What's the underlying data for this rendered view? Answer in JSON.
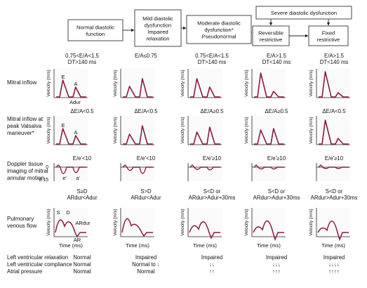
{
  "stage_boxes": [
    {
      "id": "normal",
      "lines": [
        "Normal diastolic",
        "function"
      ]
    },
    {
      "id": "mild",
      "lines": [
        "Mild diastolic",
        "dysfunction",
        "Impaired",
        "relaxation"
      ]
    },
    {
      "id": "moderate",
      "lines": [
        "Moderate diastolic",
        "dysfunction*",
        "Pseudonormal"
      ]
    },
    {
      "id": "severe",
      "lines": [
        "Severe diastolic dysfunction"
      ]
    },
    {
      "id": "reversible",
      "lines": [
        "Reversible",
        "restrictive"
      ]
    },
    {
      "id": "fixed",
      "lines": [
        "Fixed",
        "restrictive"
      ]
    }
  ],
  "row_labels": [
    {
      "id": "mitral",
      "lines": [
        "Mitral inflow"
      ]
    },
    {
      "id": "valsalva",
      "lines": [
        "Mitral inflow at",
        "peak Valsalva",
        "maneuver*"
      ]
    },
    {
      "id": "tissue",
      "lines": [
        "Doppler tissue",
        "imaging of mitral",
        "annular motion"
      ]
    },
    {
      "id": "pulmonary",
      "lines": [
        "Pulmonary",
        "venous flow"
      ]
    }
  ],
  "row1_criteria": [
    [
      "0.75<E/A<1.5",
      "DT>140 ms"
    ],
    [
      "E/A≤0.75"
    ],
    [
      "0.75<E/A<1.5",
      "DT>140 ms"
    ],
    [
      "E/A>1.5",
      "DT<140 ms"
    ],
    [
      "E/A>1.5",
      "DT<140 ms"
    ]
  ],
  "row2_criteria": [
    "ΔE/A<0.5",
    "ΔE/A<0.5",
    "ΔE/A≥0.5",
    "ΔE/A≥0.5",
    "ΔE/A<0.5"
  ],
  "row3_criteria": [
    "E/e'<10",
    "E/e'<10",
    "E/e'≥10",
    "E/e'≥10",
    "E/e'≥10"
  ],
  "row4_criteria": [
    [
      "S≥D",
      "ARdur<Adur"
    ],
    [
      "S>D",
      "ARdur<Adur"
    ],
    [
      "S<D or",
      "ARdur>Adur+30ms"
    ],
    [
      "S<D or",
      "ARdur>Adur+30ms"
    ],
    [
      "S<D or",
      "ARdur>Adur+30ms"
    ]
  ],
  "axis": {
    "velocity": "Velocity (m/s)",
    "time": "Time (ms)",
    "tissue_top": "0",
    "tissue_bottom": "0.15"
  },
  "waveform_labels": {
    "E": "E",
    "A": "A",
    "Adur": "Adur",
    "e_prime": "e'",
    "a_prime": "a'",
    "S": "S",
    "D": "D",
    "ARdur": "ARdur",
    "AR": "AR"
  },
  "bottom_table": {
    "labels": [
      "Left ventricular relaxation",
      "Left ventricular compliance",
      "Atrial pressure"
    ],
    "columns": [
      [
        "Normal",
        "Normal",
        "Normal"
      ],
      [
        "Impaired",
        "Normal to ↓",
        "Normal"
      ],
      [
        "Impaired",
        "↓↓",
        "↑↑"
      ],
      [
        "Impaired",
        "↓↓↓",
        "↑↑↑"
      ],
      [
        "Impaired",
        "↓↓↓↓",
        "↑↑↑↑"
      ]
    ]
  },
  "colors": {
    "curve": "#8b1a3a",
    "panel_bg": "#fafafa",
    "box_border": "#333333"
  }
}
